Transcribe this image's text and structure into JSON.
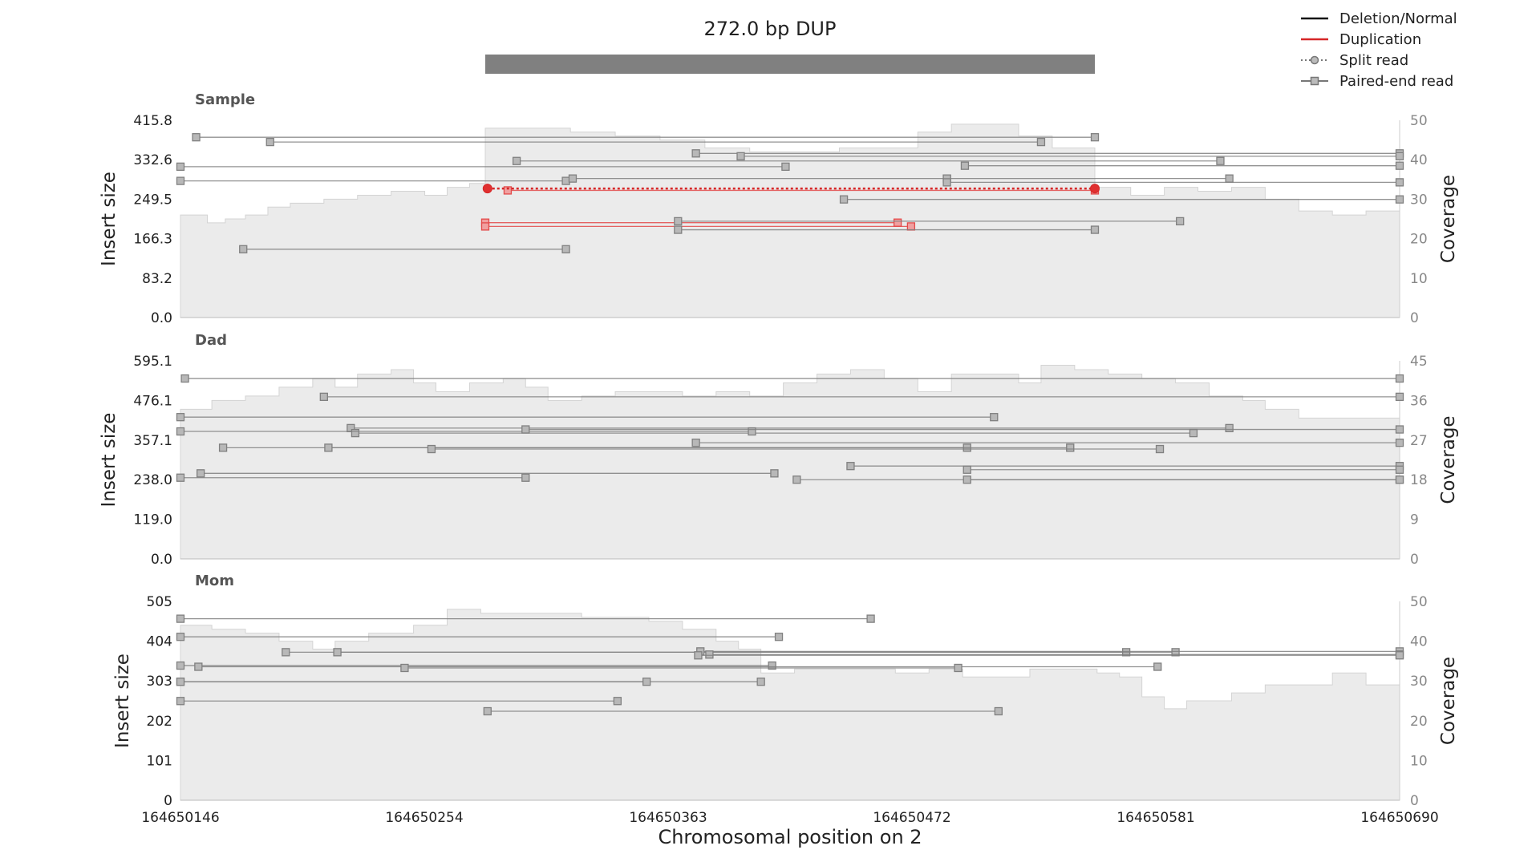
{
  "title": "272.0 bp DUP",
  "xlabel": "Chromosomal position on 2",
  "legend": [
    {
      "label": "Deletion/Normal",
      "color": "#111111",
      "style": "solid"
    },
    {
      "label": "Duplication",
      "color": "#d62728",
      "style": "solid"
    },
    {
      "label": "Split read",
      "color": "#777777",
      "style": "dotted-circle"
    },
    {
      "label": "Paired-end read",
      "color": "#777777",
      "style": "solid-square"
    }
  ],
  "chart_data": {
    "type": "line",
    "xlim": [
      164650146,
      164650690
    ],
    "xticks": [
      "164650146",
      "164650254",
      "164650363",
      "164650472",
      "164650581",
      "164650690"
    ],
    "sv_region": [
      164650282,
      164650554
    ],
    "panels": [
      {
        "name": "Sample",
        "ylabel": "Insert size",
        "y2label": "Coverage",
        "ylim": [
          0,
          415.8
        ],
        "yticks": [
          "0.0",
          "83.2",
          "166.3",
          "249.5",
          "332.6",
          "415.8"
        ],
        "y2lim": [
          0,
          50
        ],
        "y2ticks": [
          "0",
          "10",
          "20",
          "30",
          "40",
          "50"
        ],
        "coverage": [
          [
            164650146,
            26
          ],
          [
            164650158,
            24
          ],
          [
            164650166,
            25
          ],
          [
            164650175,
            26
          ],
          [
            164650185,
            28
          ],
          [
            164650195,
            29
          ],
          [
            164650210,
            30
          ],
          [
            164650225,
            31
          ],
          [
            164650240,
            32
          ],
          [
            164650255,
            31
          ],
          [
            164650265,
            33
          ],
          [
            164650275,
            34
          ],
          [
            164650282,
            48
          ],
          [
            164650300,
            48
          ],
          [
            164650320,
            47
          ],
          [
            164650340,
            46
          ],
          [
            164650360,
            45
          ],
          [
            164650380,
            43
          ],
          [
            164650400,
            42
          ],
          [
            164650420,
            42
          ],
          [
            164650440,
            43
          ],
          [
            164650460,
            43
          ],
          [
            164650475,
            47
          ],
          [
            164650490,
            49
          ],
          [
            164650505,
            49
          ],
          [
            164650520,
            46
          ],
          [
            164650535,
            43
          ],
          [
            164650554,
            33
          ],
          [
            164650570,
            31
          ],
          [
            164650585,
            33
          ],
          [
            164650600,
            32
          ],
          [
            164650615,
            33
          ],
          [
            164650630,
            30
          ],
          [
            164650645,
            27
          ],
          [
            164650660,
            26
          ],
          [
            164650675,
            27
          ],
          [
            164650690,
            28
          ]
        ],
        "reads": [
          {
            "kind": "paired",
            "type": "normal",
            "x1": 164650153,
            "x2": 164650554,
            "y": 380
          },
          {
            "kind": "paired",
            "type": "normal",
            "x1": 164650186,
            "x2": 164650530,
            "y": 370
          },
          {
            "kind": "paired",
            "type": "normal",
            "x1": 164650296,
            "x2": 164650610,
            "y": 330
          },
          {
            "kind": "paired",
            "type": "normal",
            "x1": 164650376,
            "x2": 164650690,
            "y": 346
          },
          {
            "kind": "paired",
            "type": "normal",
            "x1": 164650396,
            "x2": 164650690,
            "y": 340
          },
          {
            "kind": "paired",
            "type": "normal",
            "x1": 164650146,
            "x2": 164650416,
            "y": 318
          },
          {
            "kind": "paired",
            "type": "normal",
            "x1": 164650496,
            "x2": 164650690,
            "y": 320
          },
          {
            "kind": "paired",
            "type": "normal",
            "x1": 164650146,
            "x2": 164650318,
            "y": 288
          },
          {
            "kind": "paired",
            "type": "normal",
            "x1": 164650321,
            "x2": 164650488,
            "y": 293
          },
          {
            "kind": "paired",
            "type": "normal",
            "x1": 164650488,
            "x2": 164650614,
            "y": 293
          },
          {
            "kind": "paired",
            "type": "normal",
            "x1": 164650488,
            "x2": 164650690,
            "y": 285
          },
          {
            "kind": "paired",
            "type": "normal",
            "x1": 164650442,
            "x2": 164650690,
            "y": 249
          },
          {
            "kind": "paired",
            "type": "duplication",
            "x1": 164650282,
            "x2": 164650466,
            "y": 200
          },
          {
            "kind": "paired",
            "type": "duplication",
            "x1": 164650282,
            "x2": 164650472,
            "y": 192
          },
          {
            "kind": "paired",
            "type": "duplication",
            "x1": 164650292,
            "x2": 164650554,
            "y": 268
          },
          {
            "kind": "paired",
            "type": "normal",
            "x1": 164650368,
            "x2": 164650592,
            "y": 203
          },
          {
            "kind": "paired",
            "type": "normal",
            "x1": 164650368,
            "x2": 164650554,
            "y": 185
          },
          {
            "kind": "paired",
            "type": "normal",
            "x1": 164650174,
            "x2": 164650318,
            "y": 144
          },
          {
            "kind": "split",
            "type": "duplication",
            "x1": 164650283,
            "x2": 164650554,
            "y": 272
          }
        ]
      },
      {
        "name": "Dad",
        "ylabel": "Insert size",
        "y2label": "Coverage",
        "ylim": [
          0,
          595.1
        ],
        "yticks": [
          "0.0",
          "119.0",
          "238.0",
          "357.1",
          "476.1",
          "595.1"
        ],
        "y2lim": [
          0,
          45
        ],
        "y2ticks": [
          "0",
          "9",
          "18",
          "27",
          "36",
          "45"
        ],
        "coverage": [
          [
            164650146,
            34
          ],
          [
            164650160,
            36
          ],
          [
            164650175,
            37
          ],
          [
            164650190,
            39
          ],
          [
            164650205,
            41
          ],
          [
            164650215,
            39
          ],
          [
            164650225,
            42
          ],
          [
            164650240,
            43
          ],
          [
            164650250,
            40
          ],
          [
            164650260,
            38
          ],
          [
            164650275,
            40
          ],
          [
            164650290,
            41
          ],
          [
            164650300,
            39
          ],
          [
            164650310,
            36
          ],
          [
            164650325,
            37
          ],
          [
            164650340,
            38
          ],
          [
            164650355,
            38
          ],
          [
            164650370,
            37
          ],
          [
            164650385,
            38
          ],
          [
            164650400,
            37
          ],
          [
            164650415,
            40
          ],
          [
            164650430,
            42
          ],
          [
            164650445,
            43
          ],
          [
            164650460,
            41
          ],
          [
            164650475,
            38
          ],
          [
            164650490,
            42
          ],
          [
            164650505,
            42
          ],
          [
            164650520,
            40
          ],
          [
            164650530,
            44
          ],
          [
            164650545,
            43
          ],
          [
            164650560,
            42
          ],
          [
            164650575,
            41
          ],
          [
            164650590,
            40
          ],
          [
            164650605,
            37
          ],
          [
            164650620,
            36
          ],
          [
            164650630,
            34
          ],
          [
            164650645,
            32
          ],
          [
            164650660,
            32
          ],
          [
            164650675,
            32
          ],
          [
            164650690,
            33
          ]
        ],
        "reads": [
          {
            "kind": "paired",
            "type": "normal",
            "x1": 164650148,
            "x2": 164650690,
            "y": 542
          },
          {
            "kind": "paired",
            "type": "normal",
            "x1": 164650210,
            "x2": 164650690,
            "y": 487
          },
          {
            "kind": "paired",
            "type": "normal",
            "x1": 164650146,
            "x2": 164650509,
            "y": 426
          },
          {
            "kind": "paired",
            "type": "normal",
            "x1": 164650222,
            "x2": 164650614,
            "y": 393
          },
          {
            "kind": "paired",
            "type": "normal",
            "x1": 164650224,
            "x2": 164650598,
            "y": 378
          },
          {
            "kind": "paired",
            "type": "normal",
            "x1": 164650146,
            "x2": 164650401,
            "y": 383
          },
          {
            "kind": "paired",
            "type": "normal",
            "x1": 164650300,
            "x2": 164650690,
            "y": 389
          },
          {
            "kind": "paired",
            "type": "normal",
            "x1": 164650376,
            "x2": 164650690,
            "y": 349
          },
          {
            "kind": "paired",
            "type": "normal",
            "x1": 164650165,
            "x2": 164650497,
            "y": 334
          },
          {
            "kind": "paired",
            "type": "normal",
            "x1": 164650212,
            "x2": 164650543,
            "y": 334
          },
          {
            "kind": "paired",
            "type": "normal",
            "x1": 164650258,
            "x2": 164650583,
            "y": 330
          },
          {
            "kind": "paired",
            "type": "normal",
            "x1": 164650445,
            "x2": 164650690,
            "y": 279
          },
          {
            "kind": "paired",
            "type": "normal",
            "x1": 164650497,
            "x2": 164650690,
            "y": 268
          },
          {
            "kind": "paired",
            "type": "normal",
            "x1": 164650155,
            "x2": 164650411,
            "y": 257
          },
          {
            "kind": "paired",
            "type": "normal",
            "x1": 164650146,
            "x2": 164650300,
            "y": 244
          },
          {
            "kind": "paired",
            "type": "normal",
            "x1": 164650421,
            "x2": 164650690,
            "y": 238
          },
          {
            "kind": "paired",
            "type": "normal",
            "x1": 164650497,
            "x2": 164650690,
            "y": 238
          }
        ]
      },
      {
        "name": "Mom",
        "ylabel": "Insert size",
        "y2label": "Coverage",
        "ylim": [
          0,
          505
        ],
        "yticks": [
          "0",
          "101",
          "202",
          "303",
          "404",
          "505"
        ],
        "y2lim": [
          0,
          50
        ],
        "y2ticks": [
          "0",
          "10",
          "20",
          "30",
          "40",
          "50"
        ],
        "coverage": [
          [
            164650146,
            44
          ],
          [
            164650160,
            43
          ],
          [
            164650175,
            42
          ],
          [
            164650190,
            40
          ],
          [
            164650205,
            38
          ],
          [
            164650215,
            40
          ],
          [
            164650230,
            42
          ],
          [
            164650245,
            42
          ],
          [
            164650250,
            44
          ],
          [
            164650265,
            48
          ],
          [
            164650280,
            47
          ],
          [
            164650295,
            47
          ],
          [
            164650310,
            47
          ],
          [
            164650325,
            46
          ],
          [
            164650340,
            46
          ],
          [
            164650355,
            45
          ],
          [
            164650370,
            43
          ],
          [
            164650385,
            40
          ],
          [
            164650395,
            38
          ],
          [
            164650405,
            32
          ],
          [
            164650420,
            33
          ],
          [
            164650435,
            33
          ],
          [
            164650450,
            33
          ],
          [
            164650465,
            32
          ],
          [
            164650480,
            33
          ],
          [
            164650495,
            31
          ],
          [
            164650510,
            31
          ],
          [
            164650525,
            33
          ],
          [
            164650540,
            33
          ],
          [
            164650555,
            32
          ],
          [
            164650565,
            31
          ],
          [
            164650575,
            26
          ],
          [
            164650585,
            23
          ],
          [
            164650595,
            25
          ],
          [
            164650605,
            25
          ],
          [
            164650615,
            27
          ],
          [
            164650630,
            29
          ],
          [
            164650645,
            29
          ],
          [
            164650660,
            32
          ],
          [
            164650675,
            29
          ],
          [
            164650690,
            28
          ]
        ],
        "reads": [
          {
            "kind": "paired",
            "type": "normal",
            "x1": 164650146,
            "x2": 164650454,
            "y": 461
          },
          {
            "kind": "paired",
            "type": "normal",
            "x1": 164650146,
            "x2": 164650413,
            "y": 415
          },
          {
            "kind": "paired",
            "type": "normal",
            "x1": 164650193,
            "x2": 164650568,
            "y": 376
          },
          {
            "kind": "paired",
            "type": "normal",
            "x1": 164650216,
            "x2": 164650590,
            "y": 376
          },
          {
            "kind": "paired",
            "type": "normal",
            "x1": 164650378,
            "x2": 164650690,
            "y": 378
          },
          {
            "kind": "paired",
            "type": "normal",
            "x1": 164650382,
            "x2": 164650690,
            "y": 370
          },
          {
            "kind": "paired",
            "type": "normal",
            "x1": 164650377,
            "x2": 164650690,
            "y": 368
          },
          {
            "kind": "paired",
            "type": "normal",
            "x1": 164650146,
            "x2": 164650410,
            "y": 342
          },
          {
            "kind": "paired",
            "type": "normal",
            "x1": 164650154,
            "x2": 164650582,
            "y": 339
          },
          {
            "kind": "paired",
            "type": "normal",
            "x1": 164650246,
            "x2": 164650493,
            "y": 336
          },
          {
            "kind": "paired",
            "type": "normal",
            "x1": 164650146,
            "x2": 164650405,
            "y": 301
          },
          {
            "kind": "paired",
            "type": "normal",
            "x1": 164650146,
            "x2": 164650354,
            "y": 301
          },
          {
            "kind": "paired",
            "type": "normal",
            "x1": 164650146,
            "x2": 164650341,
            "y": 252
          },
          {
            "kind": "paired",
            "type": "normal",
            "x1": 164650283,
            "x2": 164650511,
            "y": 226
          }
        ]
      }
    ]
  }
}
